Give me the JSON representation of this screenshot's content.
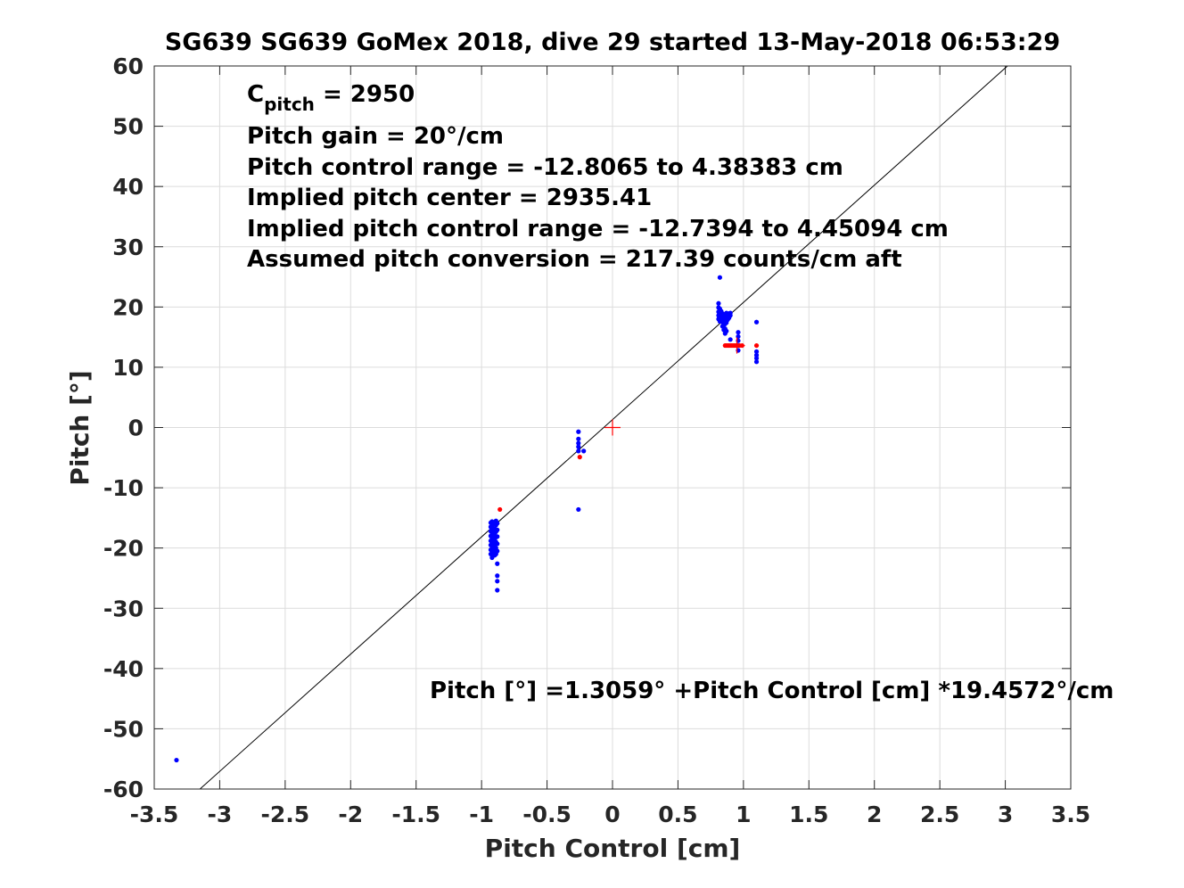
{
  "chart_data": {
    "type": "scatter",
    "title": "SG639 SG639 GoMex 2018, dive 29 started 13-May-2018 06:53:29",
    "xlabel": "Pitch Control [cm]",
    "ylabel": "Pitch [°]",
    "xlim": [
      -3.5,
      3.5
    ],
    "ylim": [
      -60,
      60
    ],
    "grid": true,
    "xticks": [
      -3.5,
      -3,
      -2.5,
      -2,
      -1.5,
      -1,
      -0.5,
      0,
      0.5,
      1,
      1.5,
      2,
      2.5,
      3,
      3.5
    ],
    "xtick_labels": [
      "-3.5",
      "-3",
      "-2.5",
      "-2",
      "-1.5",
      "-1",
      "-0.5",
      "0",
      "0.5",
      "1",
      "1.5",
      "2",
      "2.5",
      "3",
      "3.5"
    ],
    "yticks": [
      -60,
      -50,
      -40,
      -30,
      -20,
      -10,
      0,
      10,
      20,
      30,
      40,
      50,
      60
    ],
    "ytick_labels": [
      "-60",
      "-50",
      "-40",
      "-30",
      "-20",
      "-10",
      "0",
      "10",
      "20",
      "30",
      "40",
      "50",
      "60"
    ],
    "annotations": {
      "cpitch_main": "C",
      "cpitch_sub": "pitch",
      "cpitch_value": " = 2950",
      "lines": [
        "Pitch gain = 20°/cm",
        "Pitch control range = -12.8065 to 4.38383 cm",
        "Implied pitch center = 2935.41",
        "Implied pitch control range = -12.7394 to 4.45094 cm",
        "Assumed pitch conversion = 217.39 counts/cm aft"
      ],
      "fit_label": "Pitch [°] =1.3059° +Pitch Control [cm] *19.4572°/cm"
    },
    "fit_line": {
      "intercept": 1.3059,
      "slope": 19.4572,
      "color": "#000000"
    },
    "center_marker": {
      "x": 0,
      "y": 0,
      "color": "#ff0000"
    },
    "center_marker_2": {
      "x": 0.95,
      "y": 13.6,
      "color": "#ff0000"
    },
    "series": [
      {
        "color": "#0000ff",
        "points": [
          [
            -3.33,
            -55.2
          ],
          [
            -0.93,
            -15.8
          ],
          [
            -0.93,
            -16.5
          ],
          [
            -0.93,
            -17.2
          ],
          [
            -0.93,
            -18.0
          ],
          [
            -0.93,
            -18.8
          ],
          [
            -0.93,
            -19.5
          ],
          [
            -0.93,
            -20.3
          ],
          [
            -0.93,
            -21.0
          ],
          [
            -0.92,
            -15.6
          ],
          [
            -0.92,
            -16.3
          ],
          [
            -0.92,
            -17.5
          ],
          [
            -0.92,
            -18.4
          ],
          [
            -0.92,
            -19.2
          ],
          [
            -0.92,
            -20.0
          ],
          [
            -0.92,
            -20.8
          ],
          [
            -0.92,
            -21.6
          ],
          [
            -0.91,
            -16.0
          ],
          [
            -0.91,
            -17.0
          ],
          [
            -0.91,
            -17.8
          ],
          [
            -0.91,
            -18.9
          ],
          [
            -0.91,
            -19.8
          ],
          [
            -0.91,
            -20.6
          ],
          [
            -0.9,
            -15.8
          ],
          [
            -0.9,
            -16.8
          ],
          [
            -0.9,
            -17.6
          ],
          [
            -0.9,
            -18.5
          ],
          [
            -0.9,
            -19.4
          ],
          [
            -0.9,
            -20.2
          ],
          [
            -0.9,
            -21.2
          ],
          [
            -0.89,
            -15.5
          ],
          [
            -0.89,
            -16.2
          ],
          [
            -0.89,
            -17.3
          ],
          [
            -0.89,
            -18.2
          ],
          [
            -0.89,
            -19.0
          ],
          [
            -0.89,
            -20.0
          ],
          [
            -0.89,
            -21.0
          ],
          [
            -0.88,
            -15.9
          ],
          [
            -0.88,
            -17.0
          ],
          [
            -0.88,
            -18.1
          ],
          [
            -0.88,
            -19.3
          ],
          [
            -0.88,
            -20.5
          ],
          [
            -0.88,
            -22.6
          ],
          [
            -0.88,
            -24.6
          ],
          [
            -0.88,
            -25.5
          ],
          [
            -0.88,
            -27.0
          ],
          [
            -0.26,
            -0.7
          ],
          [
            -0.26,
            -1.9
          ],
          [
            -0.26,
            -2.6
          ],
          [
            -0.26,
            -3.2
          ],
          [
            -0.26,
            -3.9
          ],
          [
            -0.22,
            -3.9
          ],
          [
            -0.26,
            -13.6
          ],
          [
            0.81,
            18.0
          ],
          [
            0.81,
            18.6
          ],
          [
            0.81,
            19.2
          ],
          [
            0.81,
            19.9
          ],
          [
            0.81,
            20.6
          ],
          [
            0.82,
            17.6
          ],
          [
            0.82,
            18.3
          ],
          [
            0.82,
            19.0
          ],
          [
            0.82,
            19.7
          ],
          [
            0.82,
            24.9
          ],
          [
            0.83,
            17.8
          ],
          [
            0.83,
            18.5
          ],
          [
            0.83,
            19.3
          ],
          [
            0.84,
            16.8
          ],
          [
            0.84,
            17.5
          ],
          [
            0.84,
            18.2
          ],
          [
            0.84,
            18.9
          ],
          [
            0.85,
            16.2
          ],
          [
            0.85,
            17.0
          ],
          [
            0.85,
            17.7
          ],
          [
            0.85,
            18.5
          ],
          [
            0.86,
            15.6
          ],
          [
            0.86,
            16.4
          ],
          [
            0.86,
            17.2
          ],
          [
            0.86,
            18.0
          ],
          [
            0.86,
            18.8
          ],
          [
            0.87,
            16.0
          ],
          [
            0.87,
            17.4
          ],
          [
            0.87,
            18.4
          ],
          [
            0.87,
            19.0
          ],
          [
            0.88,
            17.9
          ],
          [
            0.88,
            18.7
          ],
          [
            0.89,
            18.2
          ],
          [
            0.89,
            18.9
          ],
          [
            0.9,
            18.6
          ],
          [
            0.9,
            19.0
          ],
          [
            0.9,
            14.6
          ],
          [
            0.96,
            12.8
          ],
          [
            0.96,
            13.6
          ],
          [
            0.96,
            14.4
          ],
          [
            0.96,
            15.1
          ],
          [
            0.96,
            15.8
          ],
          [
            1.1,
            10.9
          ],
          [
            1.1,
            11.5
          ],
          [
            1.1,
            12.0
          ],
          [
            1.1,
            12.6
          ],
          [
            1.1,
            17.5
          ]
        ]
      },
      {
        "color": "#ff0000",
        "points": [
          [
            -0.86,
            -13.6
          ],
          [
            -0.25,
            -4.9
          ],
          [
            0.86,
            13.6
          ],
          [
            0.87,
            13.6
          ],
          [
            0.88,
            13.6
          ],
          [
            0.89,
            13.6
          ],
          [
            0.9,
            13.6
          ],
          [
            0.91,
            13.6
          ],
          [
            0.92,
            13.6
          ],
          [
            0.93,
            13.6
          ],
          [
            0.94,
            13.6
          ],
          [
            0.95,
            13.6
          ],
          [
            0.97,
            13.6
          ],
          [
            0.99,
            13.6
          ],
          [
            1.1,
            13.6
          ]
        ]
      }
    ]
  }
}
